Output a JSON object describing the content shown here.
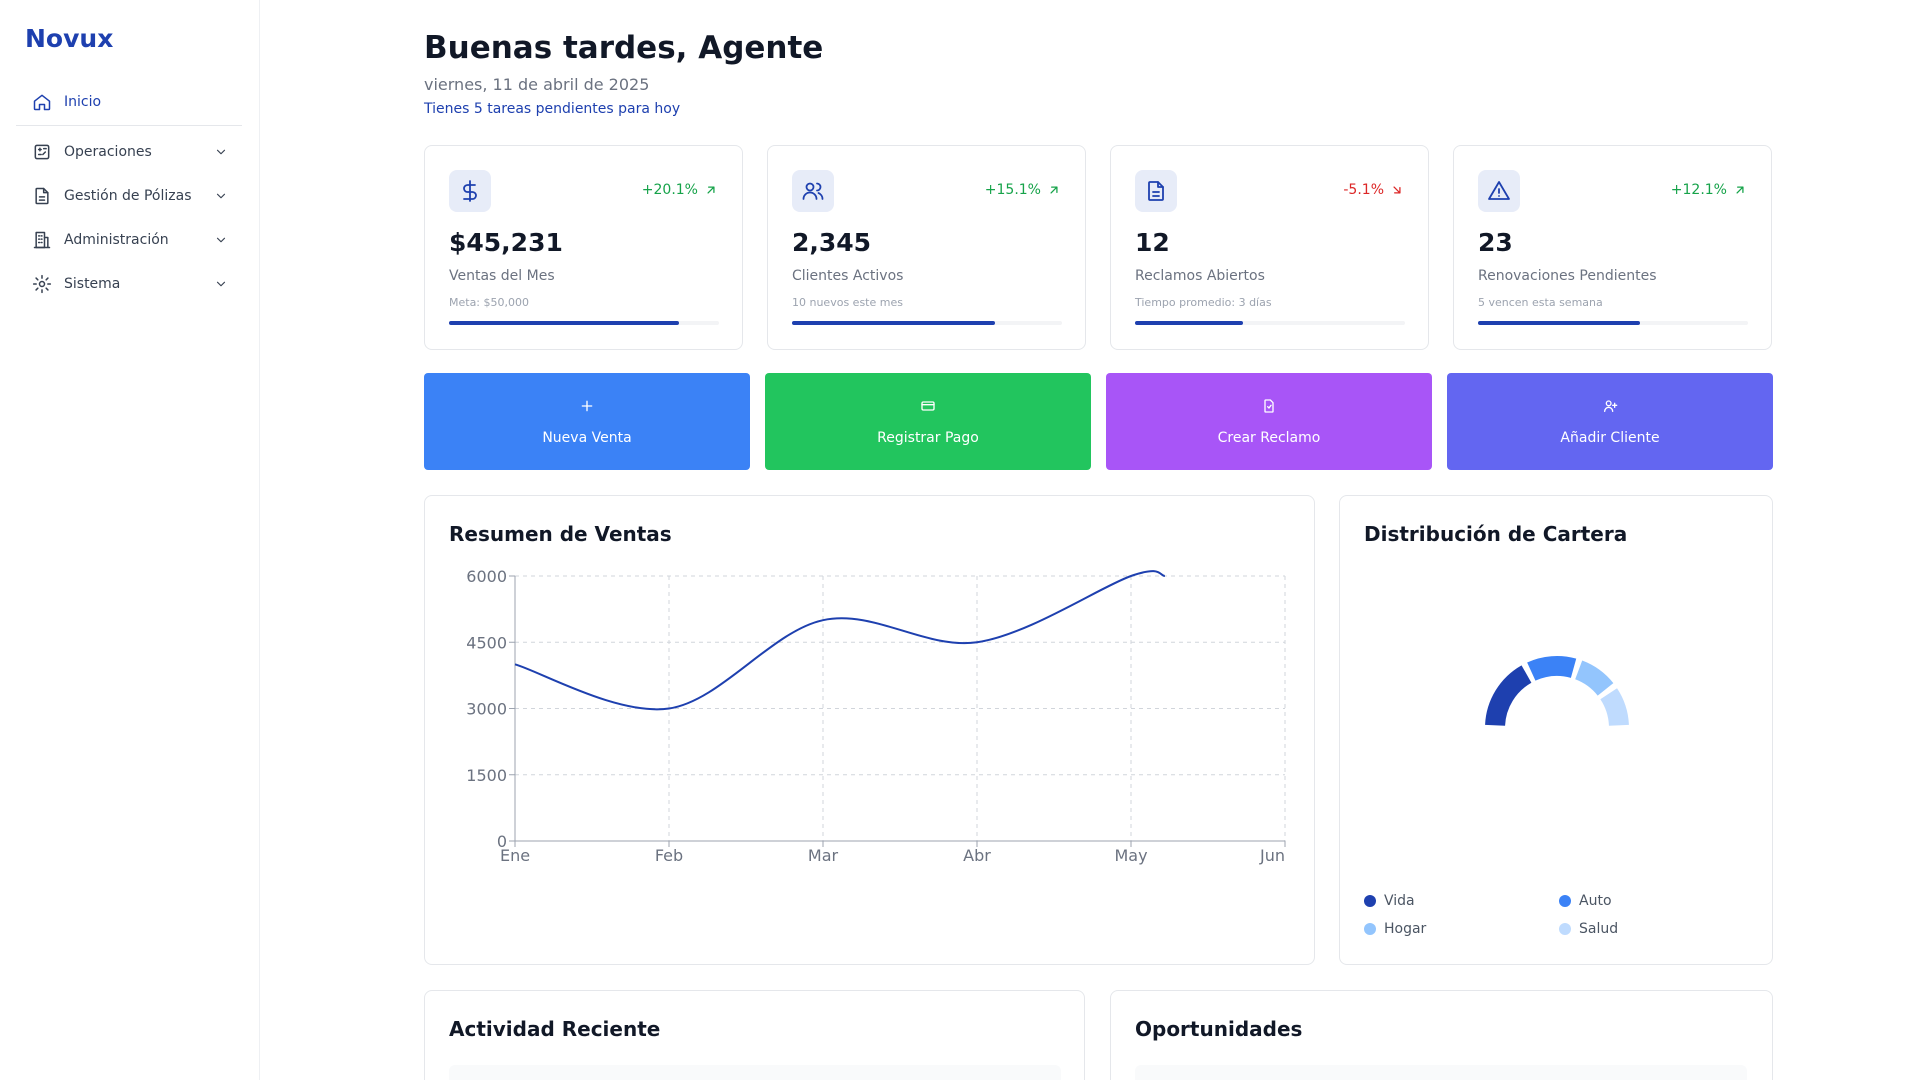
{
  "app": {
    "brand": "Novux"
  },
  "sidebar": {
    "home": {
      "label": "Inicio",
      "icon": "home-icon"
    },
    "items": [
      {
        "label": "Operaciones",
        "icon": "operations-icon"
      },
      {
        "label": "Gestión de Pólizas",
        "icon": "document-icon"
      },
      {
        "label": "Administración",
        "icon": "building-icon"
      },
      {
        "label": "Sistema",
        "icon": "gear-icon"
      }
    ]
  },
  "header": {
    "greeting": "Buenas tardes, Agente",
    "date": "viernes, 11 de abril de 2025",
    "tasks": "Tienes 5 tareas pendientes para hoy"
  },
  "stats": [
    {
      "icon": "dollar-icon",
      "change": "+20.1%",
      "trend": "up",
      "value": "$45,231",
      "label": "Ventas del Mes",
      "sub": "Meta: $50,000",
      "progress": 0.85
    },
    {
      "icon": "users-icon",
      "change": "+15.1%",
      "trend": "up",
      "value": "2,345",
      "label": "Clientes Activos",
      "sub": "10 nuevos este mes",
      "progress": 0.75
    },
    {
      "icon": "file-icon",
      "change": "-5.1%",
      "trend": "down",
      "value": "12",
      "label": "Reclamos Abiertos",
      "sub": "Tiempo promedio: 3 días",
      "progress": 0.4
    },
    {
      "icon": "warning-icon",
      "change": "+12.1%",
      "trend": "up",
      "value": "23",
      "label": "Renovaciones Pendientes",
      "sub": "5 vencen esta semana",
      "progress": 0.6
    }
  ],
  "colors": {
    "accent": "#1e40af",
    "up": "#16a34a",
    "down": "#dc2626"
  },
  "quick_actions": [
    {
      "label": "Nueva Venta",
      "icon": "plus-icon",
      "color": "#3b82f6"
    },
    {
      "label": "Registrar Pago",
      "icon": "credit-card-icon",
      "color": "#22c55e"
    },
    {
      "label": "Crear Reclamo",
      "icon": "file-claim-icon",
      "color": "#a855f7"
    },
    {
      "label": "Añadir Cliente",
      "icon": "user-plus-icon",
      "color": "#6366f1"
    }
  ],
  "sales_panel": {
    "title": "Resumen de Ventas"
  },
  "portfolio_panel": {
    "title": "Distribución de Cartera"
  },
  "activity_panel": {
    "title": "Actividad Reciente"
  },
  "opportunities_panel": {
    "title": "Oportunidades"
  },
  "chart_data": [
    {
      "type": "line",
      "title": "Resumen de Ventas",
      "x": [
        "Ene",
        "Feb",
        "Mar",
        "Abr",
        "May",
        "Jun"
      ],
      "yticks": [
        0,
        1500,
        3000,
        4500,
        6000
      ],
      "ylim": [
        0,
        6000
      ],
      "grid": true,
      "series": [
        {
          "values": [
            4000,
            3000,
            5000,
            4500,
            6000,
            6000
          ],
          "color": "#1e40af"
        }
      ]
    },
    {
      "type": "pie",
      "title": "Distribución de Cartera",
      "legend": "bottom",
      "slices": [
        {
          "label": "Vida",
          "value": 35,
          "color": "#1e40af"
        },
        {
          "label": "Auto",
          "value": 25,
          "color": "#3b82f6"
        },
        {
          "label": "Hogar",
          "value": 20,
          "color": "#93c5fd"
        },
        {
          "label": "Salud",
          "value": 20,
          "color": "#bfdbfe"
        }
      ]
    }
  ]
}
